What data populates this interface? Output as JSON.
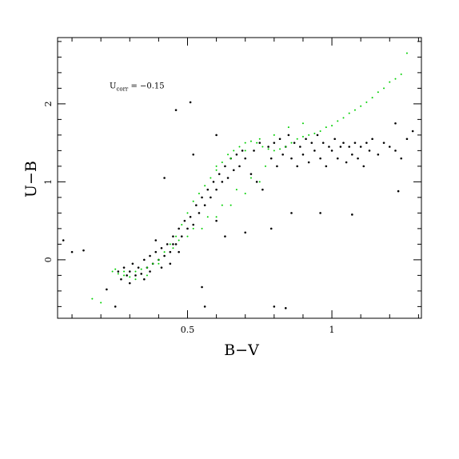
{
  "chart_data": {
    "type": "scatter",
    "title": "",
    "xlabel": "B−V",
    "ylabel": "U−B",
    "xlim": [
      0.05,
      1.31
    ],
    "ylim": [
      -0.75,
      2.85
    ],
    "x_ticks": [
      0.5,
      1
    ],
    "x_tick_labels": [
      "0.5",
      "1"
    ],
    "y_ticks": [
      0,
      1,
      2
    ],
    "y_tick_labels": [
      "0",
      "1",
      "2"
    ],
    "grid": false,
    "annotation": {
      "main": "U",
      "subscript": "corr",
      "rest": " = −0.15",
      "position": {
        "x": 0.23,
        "y": 2.2
      }
    },
    "series": [
      {
        "marker": "dot",
        "color": "#000000",
        "points": [
          [
            0.07,
            0.25
          ],
          [
            0.1,
            0.1
          ],
          [
            0.14,
            0.12
          ],
          [
            0.22,
            -0.38
          ],
          [
            0.25,
            -0.6
          ],
          [
            0.26,
            -0.15
          ],
          [
            0.27,
            -0.25
          ],
          [
            0.28,
            -0.1
          ],
          [
            0.29,
            -0.2
          ],
          [
            0.3,
            -0.15
          ],
          [
            0.31,
            -0.05
          ],
          [
            0.32,
            -0.2
          ],
          [
            0.33,
            -0.1
          ],
          [
            0.34,
            -0.18
          ],
          [
            0.35,
            0.0
          ],
          [
            0.36,
            -0.1
          ],
          [
            0.37,
            0.05
          ],
          [
            0.38,
            -0.05
          ],
          [
            0.39,
            0.1
          ],
          [
            0.4,
            0.0
          ],
          [
            0.41,
            0.15
          ],
          [
            0.42,
            0.05
          ],
          [
            0.43,
            0.2
          ],
          [
            0.44,
            0.1
          ],
          [
            0.45,
            0.3
          ],
          [
            0.46,
            0.2
          ],
          [
            0.47,
            0.4
          ],
          [
            0.48,
            0.3
          ],
          [
            0.49,
            0.5
          ],
          [
            0.5,
            0.4
          ],
          [
            0.51,
            0.55
          ],
          [
            0.52,
            0.45
          ],
          [
            0.53,
            0.7
          ],
          [
            0.54,
            0.6
          ],
          [
            0.55,
            0.8
          ],
          [
            0.56,
            0.7
          ],
          [
            0.57,
            0.9
          ],
          [
            0.58,
            0.8
          ],
          [
            0.59,
            1.0
          ],
          [
            0.6,
            0.9
          ],
          [
            0.61,
            1.1
          ],
          [
            0.62,
            1.0
          ],
          [
            0.63,
            1.2
          ],
          [
            0.64,
            1.05
          ],
          [
            0.65,
            1.3
          ],
          [
            0.66,
            1.15
          ],
          [
            0.67,
            1.35
          ],
          [
            0.68,
            1.2
          ],
          [
            0.69,
            1.4
          ],
          [
            0.7,
            1.3
          ],
          [
            0.72,
            1.1
          ],
          [
            0.73,
            1.4
          ],
          [
            0.74,
            1.0
          ],
          [
            0.75,
            1.5
          ],
          [
            0.76,
            0.9
          ],
          [
            0.78,
            1.45
          ],
          [
            0.79,
            1.3
          ],
          [
            0.8,
            1.5
          ],
          [
            0.81,
            1.2
          ],
          [
            0.82,
            1.55
          ],
          [
            0.83,
            1.35
          ],
          [
            0.84,
            1.45
          ],
          [
            0.85,
            1.6
          ],
          [
            0.86,
            1.3
          ],
          [
            0.87,
            1.5
          ],
          [
            0.88,
            1.2
          ],
          [
            0.89,
            1.45
          ],
          [
            0.9,
            1.35
          ],
          [
            0.91,
            1.55
          ],
          [
            0.92,
            1.25
          ],
          [
            0.93,
            1.5
          ],
          [
            0.94,
            1.4
          ],
          [
            0.95,
            1.6
          ],
          [
            0.96,
            1.3
          ],
          [
            0.97,
            1.5
          ],
          [
            0.98,
            1.2
          ],
          [
            0.99,
            1.45
          ],
          [
            1.0,
            1.4
          ],
          [
            1.01,
            1.55
          ],
          [
            1.02,
            1.3
          ],
          [
            1.03,
            1.45
          ],
          [
            1.04,
            1.5
          ],
          [
            1.05,
            1.25
          ],
          [
            1.06,
            1.45
          ],
          [
            1.07,
            1.35
          ],
          [
            1.08,
            1.5
          ],
          [
            1.09,
            1.3
          ],
          [
            1.1,
            1.45
          ],
          [
            1.11,
            1.2
          ],
          [
            1.12,
            1.5
          ],
          [
            1.13,
            1.4
          ],
          [
            1.14,
            1.55
          ],
          [
            1.16,
            1.35
          ],
          [
            1.18,
            1.5
          ],
          [
            1.2,
            1.45
          ],
          [
            1.22,
            1.4
          ],
          [
            1.24,
            1.3
          ],
          [
            1.26,
            1.55
          ],
          [
            1.28,
            1.65
          ],
          [
            1.23,
            0.88
          ],
          [
            0.46,
            1.92
          ],
          [
            0.51,
            2.02
          ],
          [
            0.42,
            1.05
          ],
          [
            0.86,
            0.6
          ],
          [
            0.8,
            -0.6
          ],
          [
            0.84,
            -0.62
          ],
          [
            0.96,
            0.6
          ],
          [
            1.07,
            0.58
          ],
          [
            0.79,
            0.4
          ],
          [
            0.63,
            0.3
          ],
          [
            0.56,
            -0.6
          ],
          [
            0.7,
            0.35
          ],
          [
            0.45,
            0.2
          ],
          [
            0.39,
            0.25
          ],
          [
            0.37,
            -0.15
          ],
          [
            0.41,
            -0.1
          ],
          [
            0.44,
            -0.05
          ],
          [
            0.47,
            0.1
          ],
          [
            0.35,
            -0.25
          ],
          [
            0.3,
            -0.3
          ],
          [
            0.55,
            -0.35
          ],
          [
            0.6,
            0.5
          ],
          [
            0.52,
            1.35
          ],
          [
            0.6,
            1.6
          ],
          [
            1.22,
            1.75
          ]
        ]
      },
      {
        "marker": "dot",
        "color": "#00d000",
        "points": [
          [
            0.17,
            -0.5
          ],
          [
            0.2,
            -0.55
          ],
          [
            0.24,
            -0.15
          ],
          [
            0.25,
            -0.12
          ],
          [
            0.26,
            -0.18
          ],
          [
            0.28,
            -0.2
          ],
          [
            0.3,
            -0.22
          ],
          [
            0.32,
            -0.15
          ],
          [
            0.34,
            -0.12
          ],
          [
            0.36,
            -0.1
          ],
          [
            0.38,
            -0.05
          ],
          [
            0.4,
            0.0
          ],
          [
            0.42,
            0.1
          ],
          [
            0.44,
            0.2
          ],
          [
            0.46,
            0.3
          ],
          [
            0.48,
            0.45
          ],
          [
            0.5,
            0.6
          ],
          [
            0.52,
            0.75
          ],
          [
            0.54,
            0.85
          ],
          [
            0.56,
            0.95
          ],
          [
            0.58,
            1.05
          ],
          [
            0.6,
            1.15
          ],
          [
            0.62,
            1.25
          ],
          [
            0.64,
            1.35
          ],
          [
            0.66,
            1.4
          ],
          [
            0.68,
            1.45
          ],
          [
            0.7,
            1.5
          ],
          [
            0.72,
            1.52
          ],
          [
            0.74,
            1.5
          ],
          [
            0.76,
            1.45
          ],
          [
            0.78,
            1.42
          ],
          [
            0.8,
            1.4
          ],
          [
            0.82,
            1.42
          ],
          [
            0.84,
            1.45
          ],
          [
            0.86,
            1.5
          ],
          [
            0.88,
            1.55
          ],
          [
            0.9,
            1.58
          ],
          [
            0.92,
            1.6
          ],
          [
            0.94,
            1.62
          ],
          [
            0.96,
            1.65
          ],
          [
            0.98,
            1.7
          ],
          [
            1.0,
            1.72
          ],
          [
            1.02,
            1.78
          ],
          [
            1.04,
            1.82
          ],
          [
            1.06,
            1.88
          ],
          [
            1.08,
            1.92
          ],
          [
            1.1,
            1.97
          ],
          [
            1.12,
            2.02
          ],
          [
            1.14,
            2.08
          ],
          [
            1.16,
            2.15
          ],
          [
            1.18,
            2.2
          ],
          [
            1.2,
            2.28
          ],
          [
            1.22,
            2.32
          ],
          [
            1.24,
            2.38
          ],
          [
            1.26,
            2.65
          ],
          [
            0.55,
            0.4
          ],
          [
            0.6,
            0.55
          ],
          [
            0.65,
            0.7
          ],
          [
            0.7,
            0.85
          ],
          [
            0.75,
            1.0
          ],
          [
            0.57,
            0.55
          ],
          [
            0.62,
            0.7
          ],
          [
            0.67,
            0.9
          ],
          [
            0.72,
            1.05
          ],
          [
            0.77,
            1.2
          ],
          [
            0.5,
            0.3
          ],
          [
            0.52,
            0.4
          ],
          [
            0.45,
            0.15
          ],
          [
            0.47,
            0.25
          ],
          [
            0.4,
            -0.05
          ],
          [
            0.36,
            -0.2
          ],
          [
            0.32,
            -0.25
          ],
          [
            0.28,
            -0.15
          ],
          [
            0.9,
            1.75
          ],
          [
            0.85,
            1.7
          ],
          [
            0.8,
            1.6
          ],
          [
            0.75,
            1.55
          ],
          [
            0.7,
            1.4
          ],
          [
            0.65,
            1.3
          ],
          [
            0.6,
            1.2
          ]
        ]
      }
    ]
  }
}
